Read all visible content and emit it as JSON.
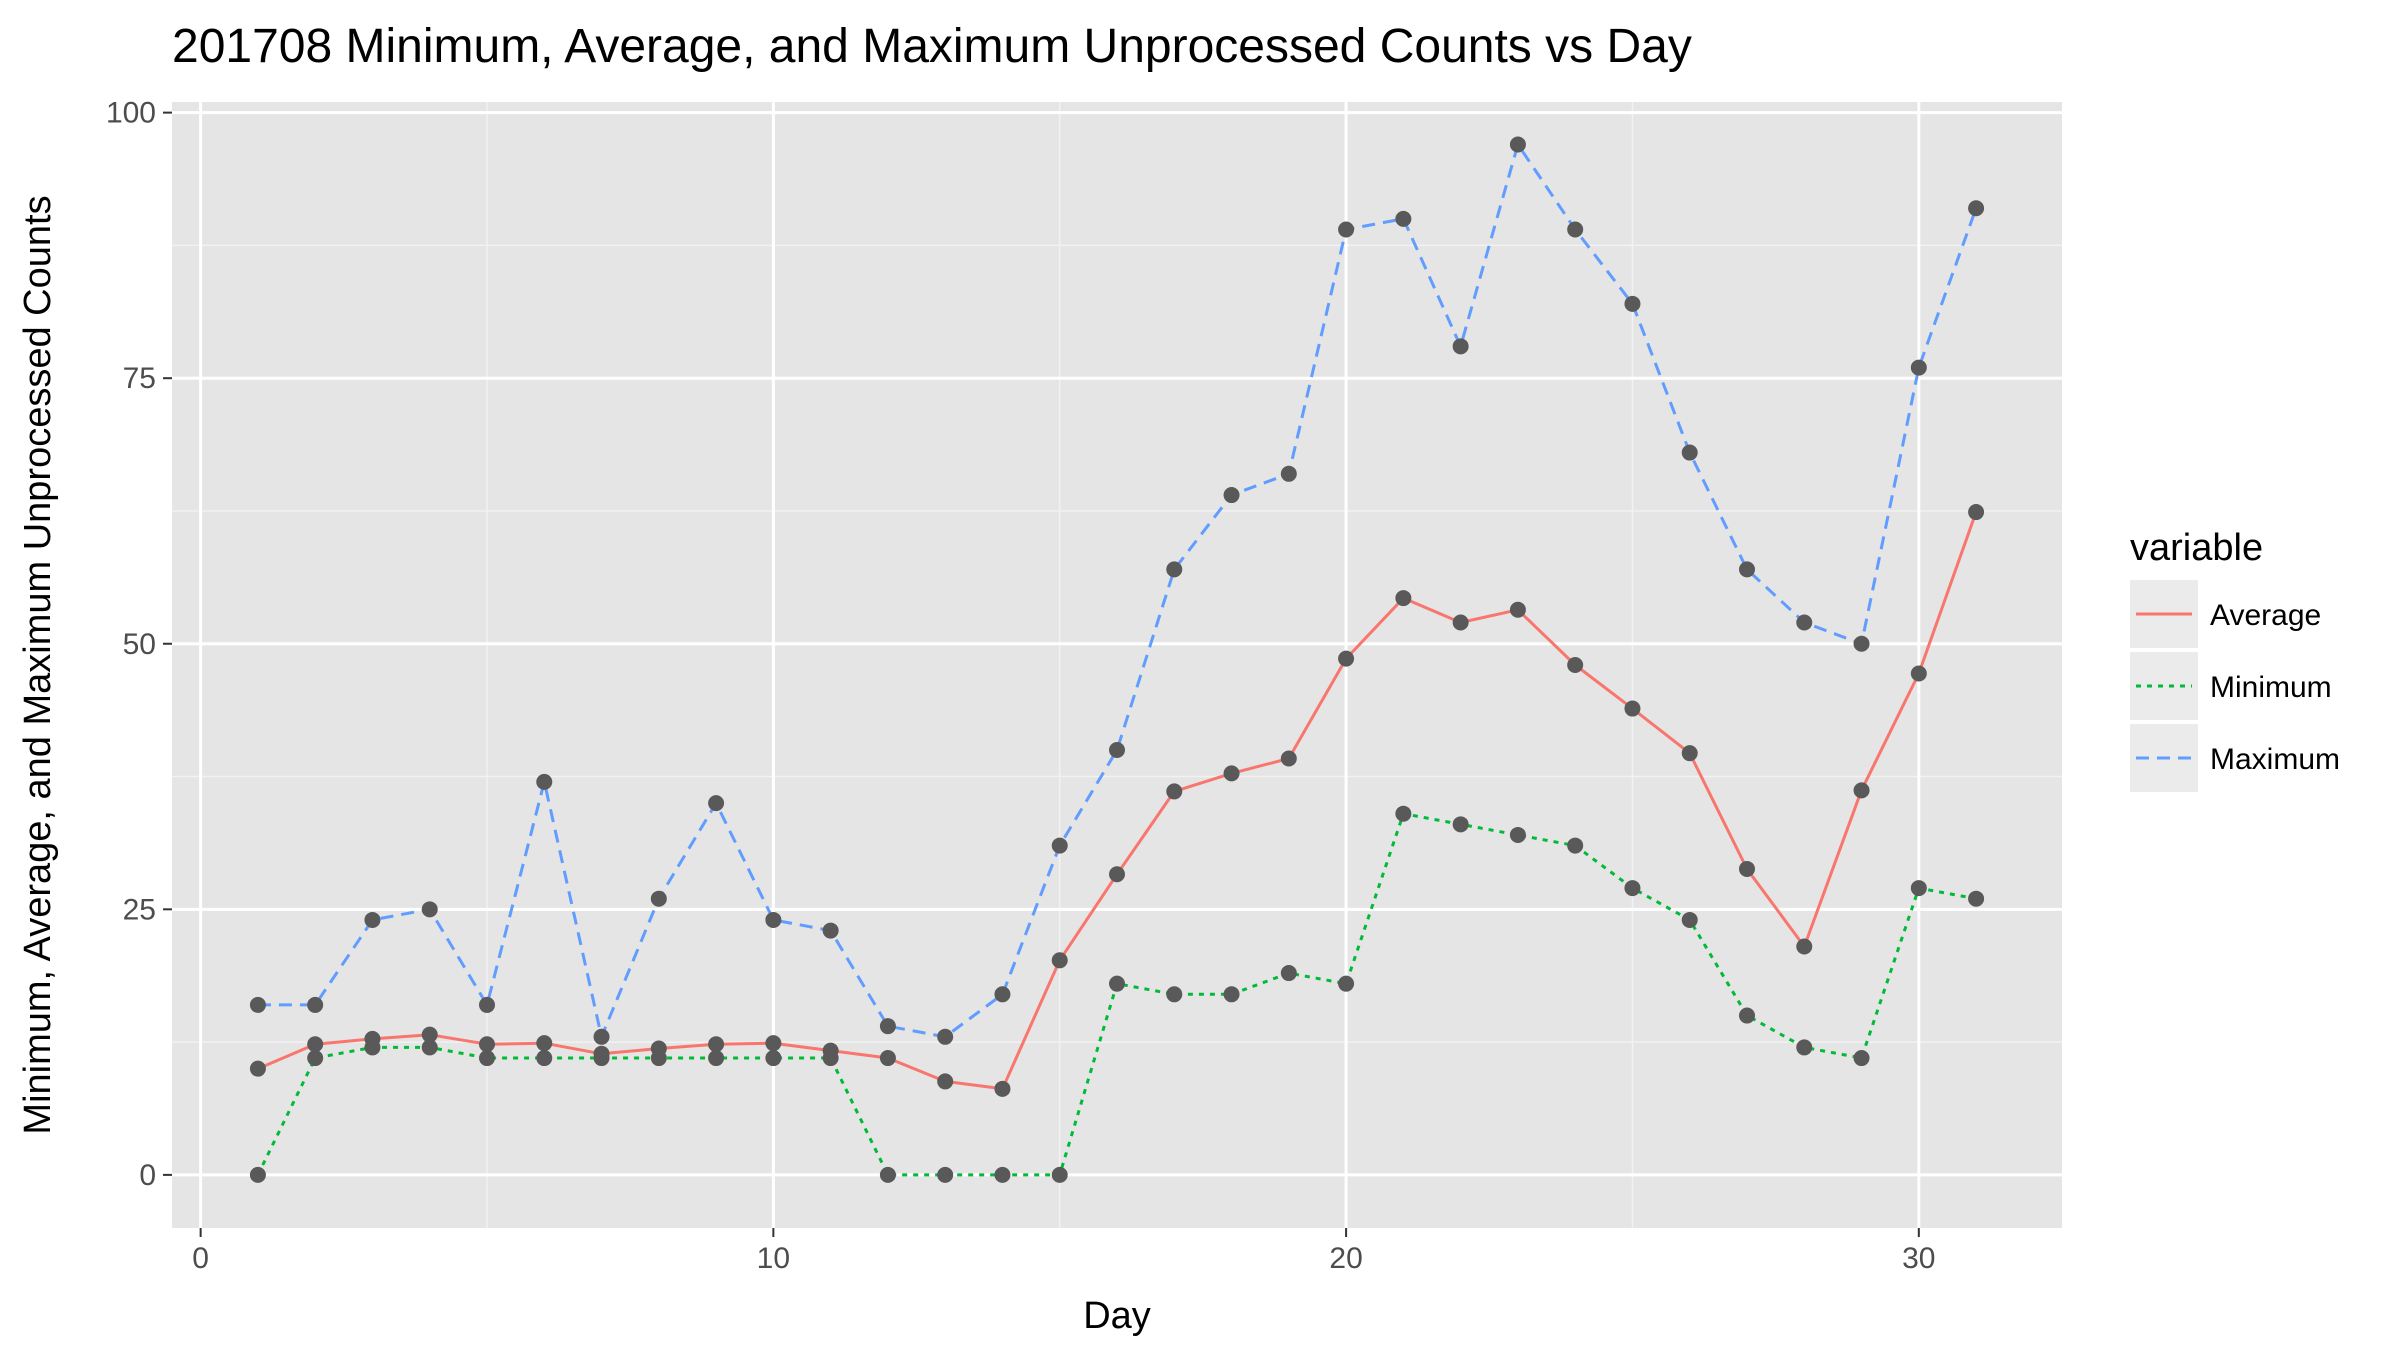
{
  "chart_data": {
    "type": "line",
    "title": "201708 Minimum, Average, and Maximum Unprocessed Counts vs Day",
    "xlabel": "Day",
    "ylabel": "Minimum, Average, and Maximum Unprocessed Counts",
    "xlim": [
      -0.5,
      32.5
    ],
    "ylim": [
      -5,
      101
    ],
    "x_ticks": [
      0,
      10,
      20,
      30
    ],
    "x_tick_labels": [
      "0",
      "10",
      "20",
      "30"
    ],
    "y_ticks": [
      0,
      25,
      50,
      75,
      100
    ],
    "y_tick_labels": [
      "0",
      "25",
      "50",
      "75",
      "100"
    ],
    "x_minor_ticks": [
      5,
      15,
      25
    ],
    "y_minor_ticks": [
      12.5,
      37.5,
      62.5,
      87.5
    ],
    "grid": true,
    "legend_position": "right",
    "legend_title": "variable",
    "point_color": "#595959",
    "panel_background": "#e5e5e5",
    "x": [
      1,
      2,
      3,
      4,
      5,
      6,
      7,
      8,
      9,
      10,
      11,
      12,
      13,
      14,
      15,
      16,
      17,
      18,
      19,
      20,
      21,
      22,
      23,
      24,
      25,
      26,
      27,
      28,
      29,
      30,
      31
    ],
    "series": [
      {
        "name": "Average",
        "color": "#f8766d",
        "linetype": "solid",
        "values": [
          10,
          12.3,
          12.8,
          13.2,
          12.3,
          12.4,
          11.4,
          11.9,
          12.3,
          12.4,
          11.7,
          11,
          8.8,
          8.1,
          20.2,
          28.3,
          36.1,
          37.8,
          39.2,
          48.6,
          54.3,
          52,
          53.2,
          48,
          43.9,
          39.7,
          28.8,
          21.5,
          36.2,
          47.2,
          62.4
        ]
      },
      {
        "name": "Minimum",
        "color": "#00ba38",
        "linetype": "dotted",
        "values": [
          0,
          11,
          12,
          12,
          11,
          11,
          11,
          11,
          11,
          11,
          11,
          0,
          0,
          0,
          0,
          18,
          17,
          17,
          19,
          18,
          34,
          33,
          32,
          31,
          27,
          24,
          15,
          12,
          11,
          27,
          26
        ]
      },
      {
        "name": "Maximum",
        "color": "#619cff",
        "linetype": "dashed",
        "values": [
          16,
          16,
          24,
          25,
          16,
          37,
          13,
          26,
          35,
          24,
          23,
          14,
          13,
          17,
          31,
          40,
          57,
          64,
          66,
          89,
          90,
          78,
          97,
          89,
          82,
          68,
          57,
          52,
          50,
          76,
          91
        ]
      }
    ]
  }
}
